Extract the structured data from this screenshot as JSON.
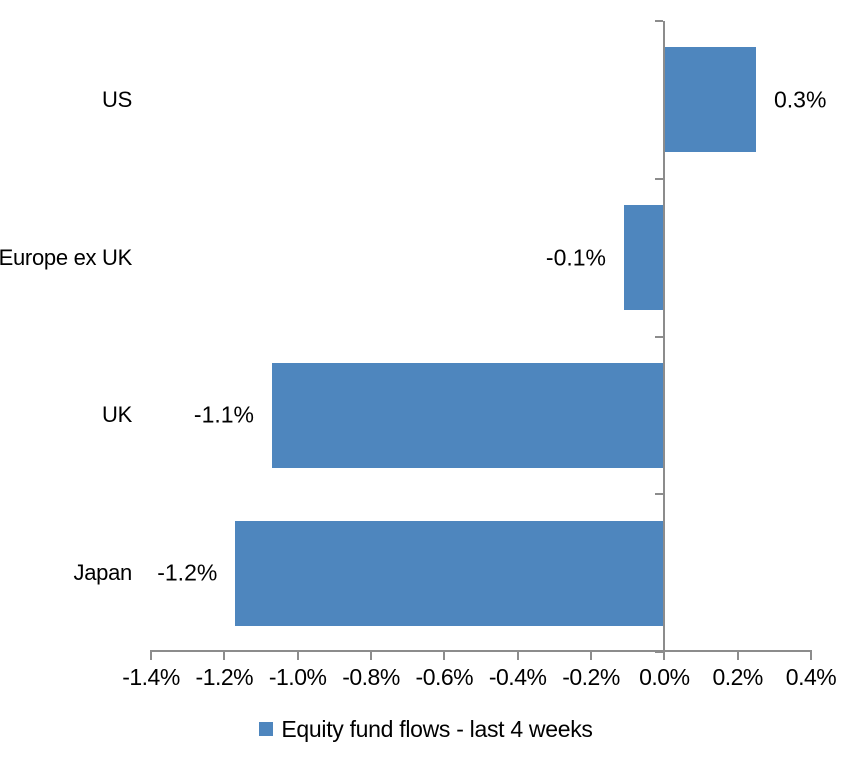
{
  "chart_data": {
    "type": "bar",
    "orientation": "horizontal",
    "title": "",
    "categories": [
      "US",
      "Europe ex UK",
      "UK",
      "Japan"
    ],
    "series": [
      {
        "name": "Equity fund flows - last 4 weeks",
        "values": [
          0.3,
          -0.1,
          -1.1,
          -1.2
        ],
        "values_measured_from_bars": [
          0.25,
          -0.11,
          -1.07,
          -1.17
        ],
        "data_labels": [
          "0.3%",
          "-0.1%",
          "-1.1%",
          "-1.2%"
        ],
        "unit": "%"
      }
    ],
    "x_axis": {
      "min": -1.4,
      "max": 0.4,
      "tick_step": 0.2,
      "tick_labels": [
        "-1.4%",
        "-1.2%",
        "-1.0%",
        "-0.8%",
        "-0.6%",
        "-0.4%",
        "-0.2%",
        "0.0%",
        "0.2%",
        "0.4%"
      ]
    },
    "legend": {
      "position": "bottom-center",
      "entries": [
        {
          "label": "Equity fund flows - last 4 weeks",
          "swatch_color": "#4e86be"
        }
      ]
    },
    "grid": false,
    "data_label_position": "outside-end",
    "colors": {
      "bar": "#4e86be",
      "axis": "#8c8c8c",
      "text": "#000000",
      "background": "#ffffff"
    }
  }
}
